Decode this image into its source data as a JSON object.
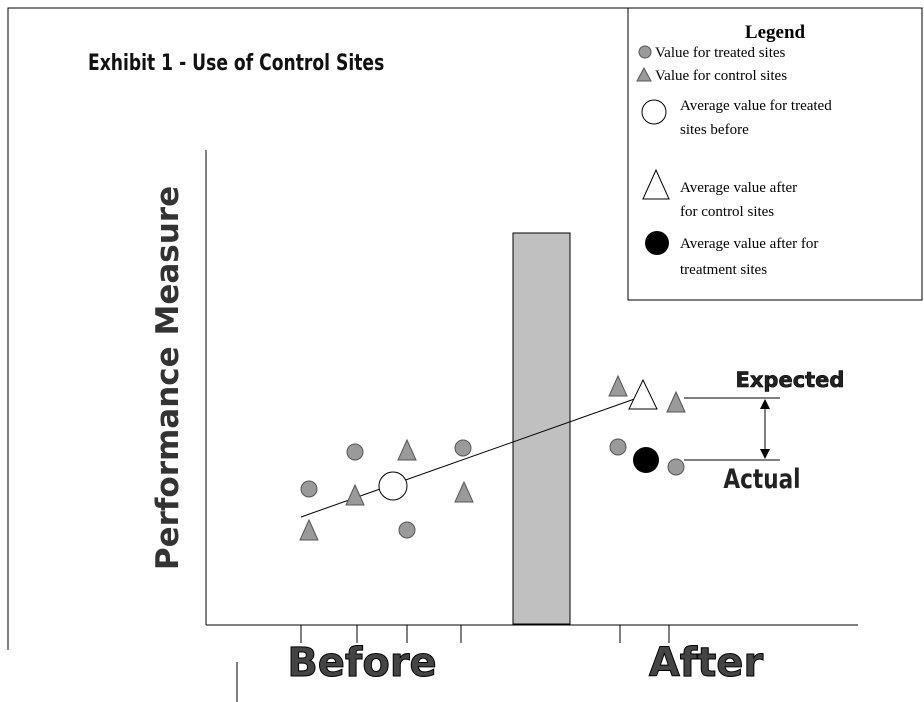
{
  "title": "Exhibit 1 - Use of Control Sites",
  "y_axis_label": "Performance Measure",
  "x_labels": [
    "Before",
    "After"
  ],
  "legend": {
    "title": "Legend",
    "items": [
      {
        "lines": [
          "Value for treated sites"
        ]
      },
      {
        "lines": [
          "Value for control sites"
        ]
      },
      {
        "lines": [
          "Average value for treated",
          "sites before"
        ]
      },
      {
        "lines": [
          "Average value after",
          "for control sites"
        ]
      },
      {
        "lines": [
          "Average value after for",
          "treatment sites"
        ]
      }
    ]
  },
  "annotations": [
    "Expected",
    "Actual"
  ]
}
